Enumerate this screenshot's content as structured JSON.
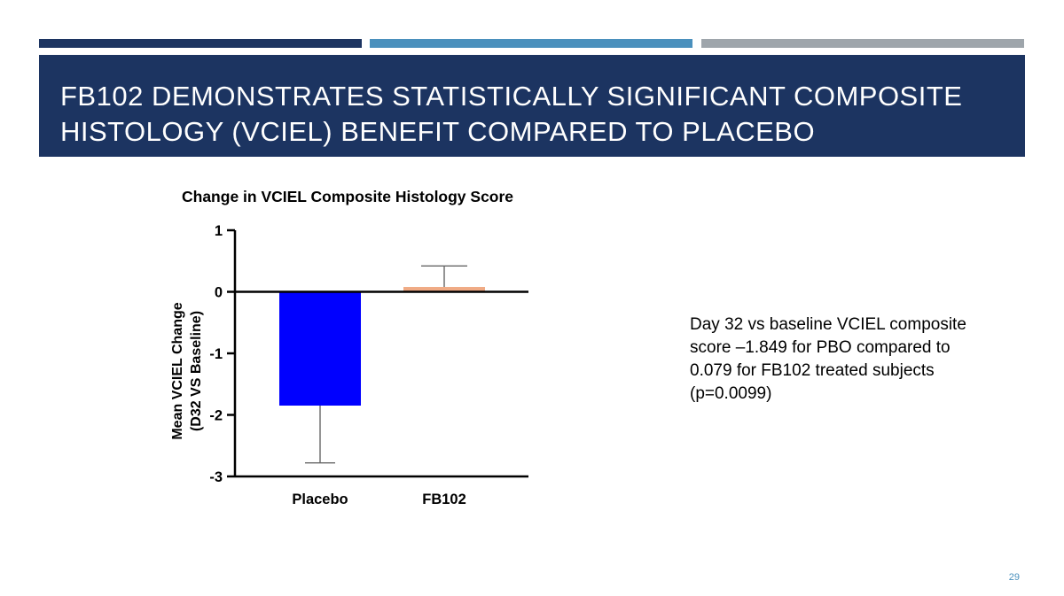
{
  "slide": {
    "title_lines": [
      "FB102 DEMONSTRATES STATISTICALLY SIGNIFICANT COMPOSITE",
      "HISTOLOGY (VCIEL) BENEFIT COMPARED TO PLACEBO"
    ],
    "note_lines": [
      "Day 32 vs baseline VCIEL composite",
      "score –1.849 for PBO compared to",
      "0.079 for FB102 treated subjects",
      "(p=0.0099)"
    ],
    "page_number": "29"
  },
  "colors": {
    "stripe_1": "#1c3461",
    "stripe_2": "#4a90bd",
    "stripe_3": "#9ea5ab",
    "title_bar": "#1c3461",
    "page_number": "#4a90bd",
    "placebo_bar": "#0000ff",
    "fb102_bar": "#f0ab85",
    "axis": "#000000",
    "error_bar": "#666666"
  },
  "chart_data": {
    "type": "bar",
    "title": "Change in VCIEL Composite Histology Score",
    "ylabel_lines": [
      "Mean VCIEL Change",
      "(D32 VS Baseline)"
    ],
    "xlabel": "",
    "categories": [
      "Placebo",
      "FB102"
    ],
    "values": [
      -1.849,
      0.079
    ],
    "error_upper": [
      0,
      0.42
    ],
    "error_lower": [
      -2.78,
      0
    ],
    "ylim": [
      -3,
      1
    ],
    "yticks": [
      1,
      0,
      -1,
      -2,
      -3
    ],
    "ytick_labels": [
      "1",
      "0",
      "-1",
      "-2",
      "-3"
    ],
    "grid": false
  }
}
